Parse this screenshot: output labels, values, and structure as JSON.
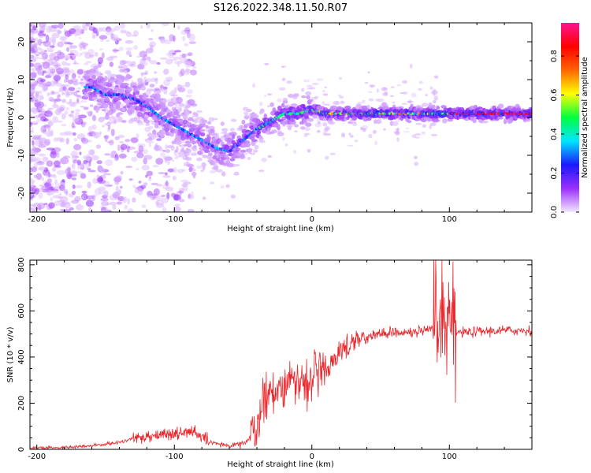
{
  "title": "S126.2022.348.11.50.R07",
  "chart_data": [
    {
      "type": "heatmap",
      "xlabel": "Height of straight line (km)",
      "ylabel": "Frequency (Hz)",
      "xlim": [
        -205,
        160
      ],
      "ylim": [
        -25,
        25
      ],
      "x_ticks": [
        -200,
        -100,
        0,
        100
      ],
      "y_ticks": [
        -20,
        -10,
        0,
        10,
        20
      ],
      "colorbar": {
        "label": "Normalized spectral amplitude",
        "ticks": [
          "0.0",
          "0.2",
          "0.4",
          "0.6",
          "0.8"
        ],
        "tick_values": [
          0.0,
          0.2,
          0.4,
          0.6,
          0.8
        ],
        "range": [
          0,
          0.97
        ],
        "colors": [
          "#f2e6ff",
          "#9b30ff",
          "#1a1aff",
          "#00e5ff",
          "#00ff40",
          "#ffff00",
          "#ff6600",
          "#ff0000",
          "#ff1493"
        ]
      },
      "ridge": [
        {
          "x": -160,
          "y": 8
        },
        {
          "x": -150,
          "y": 6
        },
        {
          "x": -140,
          "y": 6
        },
        {
          "x": -130,
          "y": 5
        },
        {
          "x": -120,
          "y": 3
        },
        {
          "x": -110,
          "y": 0
        },
        {
          "x": -100,
          "y": -2
        },
        {
          "x": -90,
          "y": -4
        },
        {
          "x": -80,
          "y": -6
        },
        {
          "x": -70,
          "y": -8
        },
        {
          "x": -60,
          "y": -9
        },
        {
          "x": -50,
          "y": -6
        },
        {
          "x": -40,
          "y": -3
        },
        {
          "x": -30,
          "y": -1
        },
        {
          "x": -20,
          "y": 1
        },
        {
          "x": -10,
          "y": 1
        },
        {
          "x": 0,
          "y": 2
        },
        {
          "x": 10,
          "y": 1
        },
        {
          "x": 20,
          "y": 1
        },
        {
          "x": 40,
          "y": 1
        },
        {
          "x": 60,
          "y": 1
        },
        {
          "x": 80,
          "y": 1
        },
        {
          "x": 100,
          "y": 1
        },
        {
          "x": 120,
          "y": 1
        },
        {
          "x": 140,
          "y": 1
        },
        {
          "x": 160,
          "y": 1
        }
      ]
    },
    {
      "type": "line",
      "xlabel": "Height of straight line (km)",
      "ylabel": "SNR (10 * v/v)",
      "xlim": [
        -205,
        160
      ],
      "ylim": [
        0,
        820
      ],
      "x_ticks": [
        -200,
        -100,
        0,
        100
      ],
      "y_ticks": [
        0,
        200,
        400,
        600,
        800
      ],
      "series_color": "#e8262b",
      "envelope": [
        {
          "x": -205,
          "y": 5
        },
        {
          "x": -180,
          "y": 8
        },
        {
          "x": -160,
          "y": 15
        },
        {
          "x": -140,
          "y": 30
        },
        {
          "x": -125,
          "y": 55
        },
        {
          "x": -110,
          "y": 65
        },
        {
          "x": -95,
          "y": 70
        },
        {
          "x": -85,
          "y": 75
        },
        {
          "x": -75,
          "y": 30
        },
        {
          "x": -60,
          "y": 15
        },
        {
          "x": -48,
          "y": 30
        },
        {
          "x": -40,
          "y": 100
        },
        {
          "x": -35,
          "y": 200
        },
        {
          "x": -30,
          "y": 260
        },
        {
          "x": -20,
          "y": 280
        },
        {
          "x": -12,
          "y": 290
        },
        {
          "x": -5,
          "y": 300
        },
        {
          "x": 0,
          "y": 310
        },
        {
          "x": 10,
          "y": 340
        },
        {
          "x": 20,
          "y": 420
        },
        {
          "x": 30,
          "y": 470
        },
        {
          "x": 40,
          "y": 490
        },
        {
          "x": 50,
          "y": 500
        },
        {
          "x": 60,
          "y": 510
        },
        {
          "x": 70,
          "y": 505
        },
        {
          "x": 80,
          "y": 510
        },
        {
          "x": 90,
          "y": 520
        },
        {
          "x": 100,
          "y": 510
        },
        {
          "x": 110,
          "y": 505
        },
        {
          "x": 120,
          "y": 510
        },
        {
          "x": 140,
          "y": 515
        },
        {
          "x": 160,
          "y": 515
        }
      ]
    }
  ]
}
